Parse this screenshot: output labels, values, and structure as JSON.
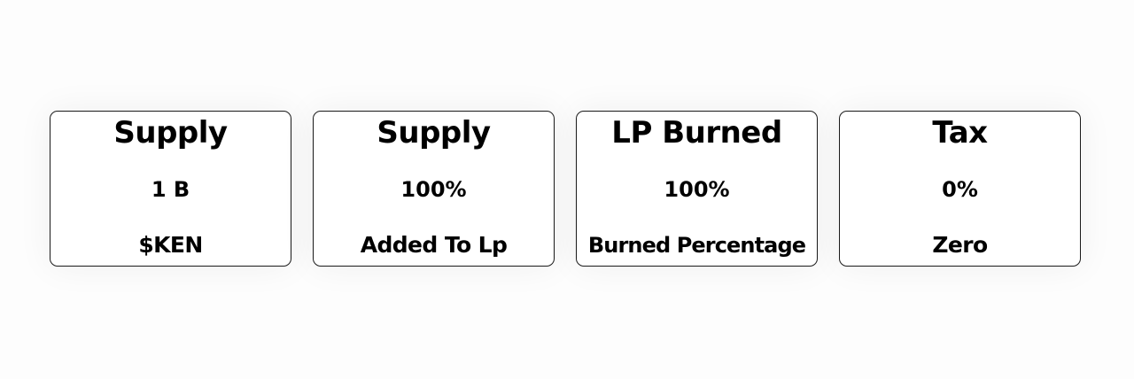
{
  "cards": [
    {
      "title": "Supply",
      "value": "1 B",
      "caption": "$KEN"
    },
    {
      "title": "Supply",
      "value": "100%",
      "caption": "Added To Lp"
    },
    {
      "title": "LP Burned",
      "value": "100%",
      "caption": "Burned Percentage"
    },
    {
      "title": "Tax",
      "value": "0%",
      "caption": "Zero"
    }
  ]
}
